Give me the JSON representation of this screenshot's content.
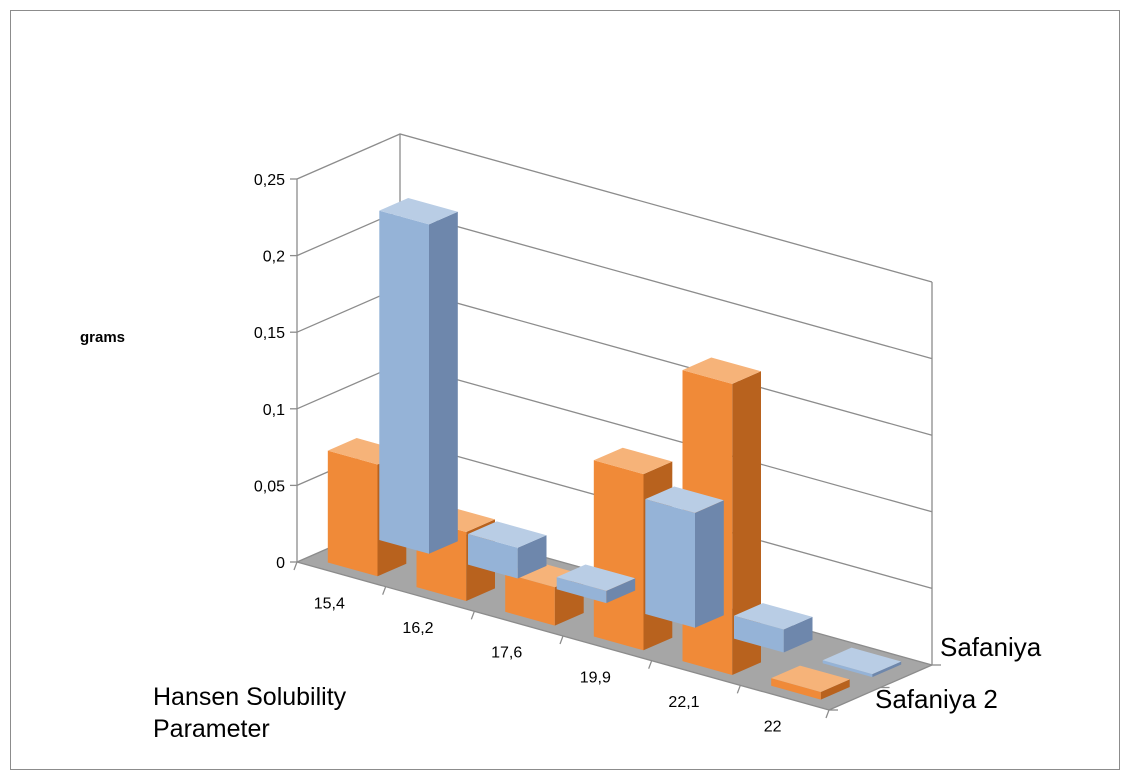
{
  "chart_data": {
    "type": "bar",
    "subtype": "3d-column",
    "title": "",
    "ylabel": "grams",
    "xlabel": "Hansen Solubility Parameter",
    "categories": [
      "15,4",
      "16,2",
      "17,6",
      "19,9",
      "22,1",
      "22"
    ],
    "series": [
      {
        "name": "Safaniya",
        "values": [
          0.215,
          0.02,
          0.008,
          0.075,
          0.015,
          0.002
        ]
      },
      {
        "name": "Safaniya 2",
        "values": [
          0.073,
          0.045,
          0.025,
          0.115,
          0.19,
          0.005
        ]
      }
    ],
    "ylim": [
      0,
      0.25
    ],
    "yticks": [
      "0",
      "0,05",
      "0,1",
      "0,15",
      "0,2",
      "0,25"
    ],
    "grid": true,
    "legend": "none",
    "colors": {
      "Safaniya": {
        "front": "#95B3D7",
        "top": "#B9CDE5",
        "side": "#6E87AC"
      },
      "Safaniya 2": {
        "front": "#F08A38",
        "top": "#F6B379",
        "side": "#B8621E"
      },
      "floor": "#A6A6A6",
      "gridline": "#8c8c8c"
    }
  }
}
